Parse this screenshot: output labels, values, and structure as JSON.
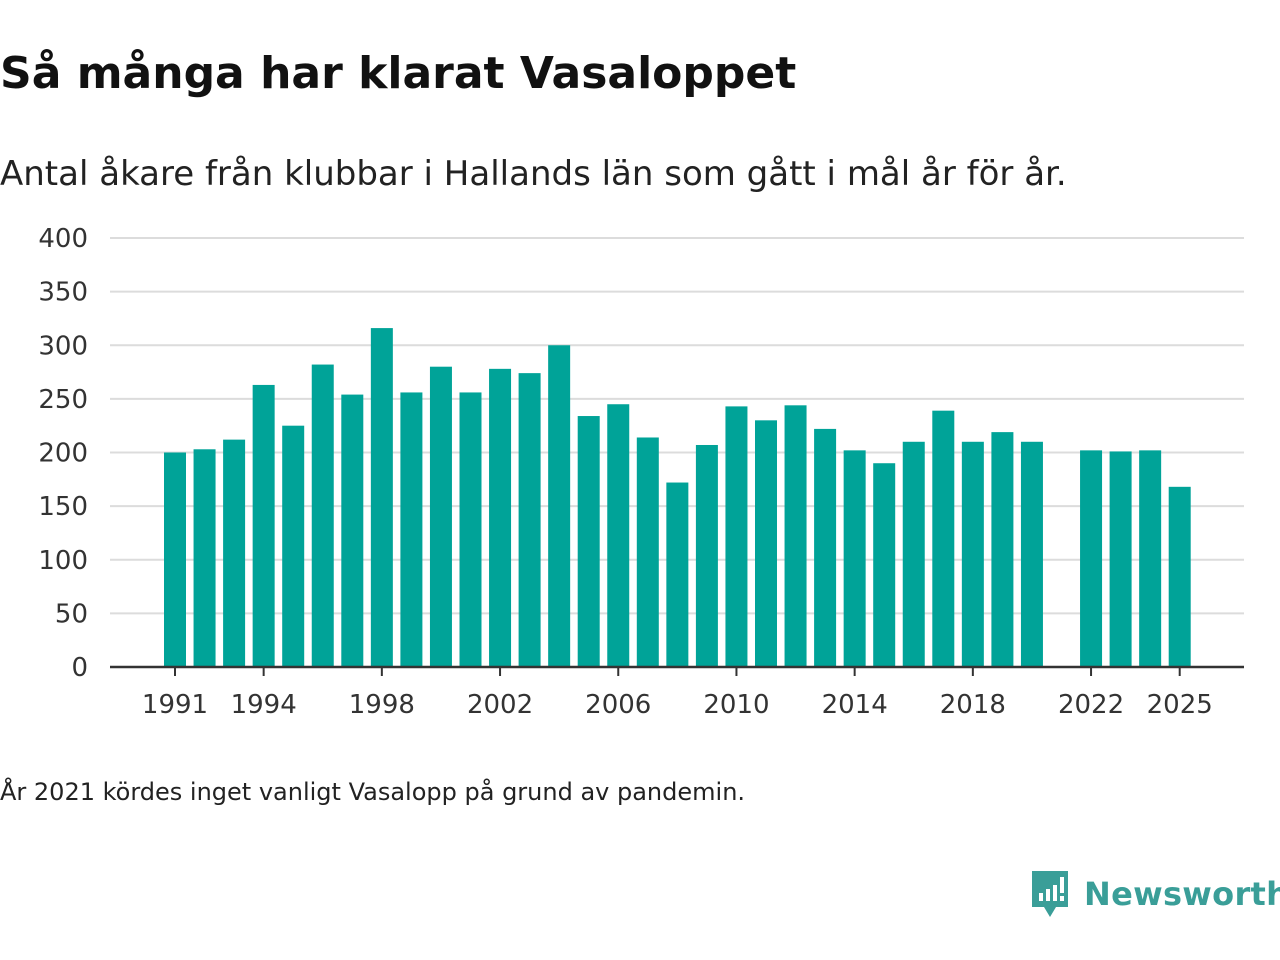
{
  "header": {
    "title": "Så många har klarat Vasaloppet",
    "subtitle": "Antal åkare från klubbar i Hallands län som gått i mål år för år."
  },
  "footer": {
    "note": "År 2021 kördes inget vanligt Vasalopp på grund av pandemin.",
    "brand": "Newsworthy"
  },
  "colors": {
    "bar": "#00a398",
    "grid": "#dcdcdc",
    "axis": "#333333",
    "brand": "#3a9e98"
  },
  "chart_data": {
    "type": "bar",
    "title": "Så många har klarat Vasaloppet",
    "subtitle": "Antal åkare från klubbar i Hallands län som gått i mål år för år.",
    "xlabel": "",
    "ylabel": "",
    "categories": [
      1991,
      1992,
      1993,
      1994,
      1995,
      1996,
      1997,
      1998,
      1999,
      2000,
      2001,
      2002,
      2003,
      2004,
      2005,
      2006,
      2007,
      2008,
      2009,
      2010,
      2011,
      2012,
      2013,
      2014,
      2015,
      2016,
      2017,
      2018,
      2019,
      2020,
      2021,
      2022,
      2023,
      2024,
      2025
    ],
    "values": [
      200,
      203,
      212,
      263,
      225,
      282,
      254,
      316,
      256,
      280,
      256,
      278,
      274,
      300,
      234,
      245,
      214,
      172,
      207,
      243,
      230,
      244,
      222,
      202,
      190,
      210,
      239,
      210,
      219,
      210,
      null,
      202,
      201,
      202,
      168
    ],
    "ylim": [
      0,
      400
    ],
    "yticks": [
      0,
      50,
      100,
      150,
      200,
      250,
      300,
      350,
      400
    ],
    "xticks": [
      1991,
      1994,
      1998,
      2002,
      2006,
      2010,
      2014,
      2018,
      2022,
      2025
    ],
    "grid": true,
    "legend": "none"
  }
}
